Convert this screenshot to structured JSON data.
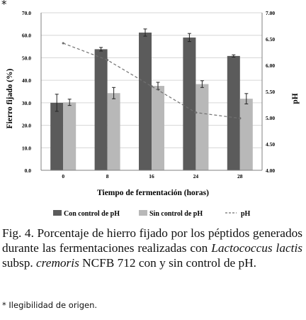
{
  "asterisk": "*",
  "chart_data": {
    "type": "bar",
    "categories": [
      "0",
      "8",
      "16",
      "24",
      "28"
    ],
    "xlabel": "Tiempo de fermentación (horas)",
    "ylabel": "Fierro fijado (%)",
    "y2label": "pH",
    "ylim": [
      0,
      70
    ],
    "y2lim": [
      4.0,
      7.0
    ],
    "yticks": [
      "0.0",
      "10.0",
      "20.0",
      "30.0",
      "40.0",
      "50.0",
      "60.0",
      "70.0"
    ],
    "y2ticks": [
      "4.00",
      "4.50",
      "5.00",
      "5.50",
      "6.00",
      "6.50",
      "7.00"
    ],
    "grid": true,
    "legend_position": "bottom",
    "series": [
      {
        "name": "Con control de pH",
        "kind": "bar",
        "color": "#5b5b5b",
        "values": [
          30.0,
          53.8,
          61.2,
          59.0,
          50.8
        ],
        "errors": [
          3.8,
          0.8,
          1.6,
          1.8,
          0.5
        ]
      },
      {
        "name": "Sin control de pH",
        "kind": "bar",
        "color": "#b8b8b8",
        "values": [
          30.2,
          34.3,
          37.5,
          38.3,
          31.8
        ],
        "errors": [
          1.4,
          2.5,
          1.6,
          1.5,
          2.3
        ]
      },
      {
        "name": "pH",
        "kind": "line",
        "axis": "right",
        "color": "#707070",
        "values": [
          6.42,
          6.1,
          5.6,
          5.1,
          4.99
        ]
      }
    ]
  },
  "caption": {
    "part1": "Fig. 4. Porcentaje de hierro fijado por los péptidos generados durante las fermentaciones realizadas con ",
    "italic1": "Lactococcus lactis",
    "part2": " subsp. ",
    "italic2": "cremoris",
    "part3": " NCFB 712 con y sin control de pH."
  },
  "note": "* Ilegibilidad de origen."
}
